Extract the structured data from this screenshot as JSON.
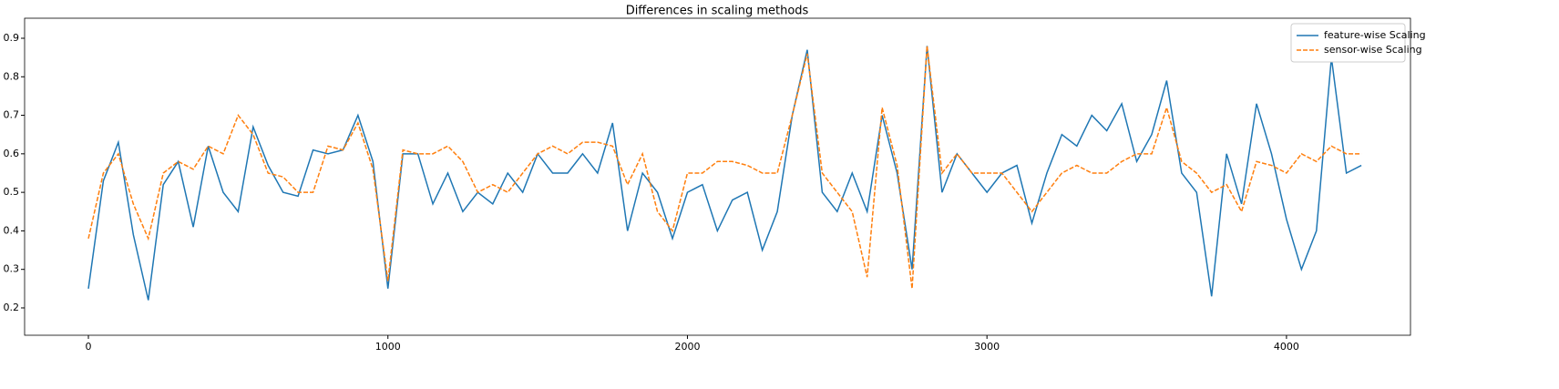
{
  "chart_data": {
    "type": "line",
    "title": "Differences in scaling methods",
    "x": [
      0,
      50,
      100,
      150,
      200,
      250,
      300,
      350,
      400,
      450,
      500,
      550,
      600,
      650,
      700,
      750,
      800,
      850,
      900,
      950,
      1000,
      1050,
      1100,
      1150,
      1200,
      1250,
      1300,
      1350,
      1400,
      1450,
      1500,
      1550,
      1600,
      1650,
      1700,
      1750,
      1800,
      1850,
      1900,
      1950,
      2000,
      2050,
      2100,
      2150,
      2200,
      2250,
      2300,
      2350,
      2400,
      2450,
      2500,
      2550,
      2600,
      2650,
      2700,
      2750,
      2800,
      2850,
      2900,
      2950,
      3000,
      3050,
      3100,
      3150,
      3200,
      3250,
      3300,
      3350,
      3400,
      3450,
      3500,
      3550,
      3600,
      3650,
      3700,
      3750,
      3800,
      3850,
      3900,
      3950,
      4000,
      4050,
      4100,
      4150,
      4200,
      4250
    ],
    "series": [
      {
        "name": "feature-wise Scaling",
        "color": "#1f77b4",
        "linestyle": "solid",
        "values": [
          0.25,
          0.53,
          0.63,
          0.39,
          0.22,
          0.52,
          0.58,
          0.41,
          0.62,
          0.5,
          0.45,
          0.67,
          0.57,
          0.5,
          0.49,
          0.61,
          0.6,
          0.61,
          0.7,
          0.58,
          0.25,
          0.6,
          0.6,
          0.47,
          0.55,
          0.45,
          0.5,
          0.47,
          0.55,
          0.5,
          0.6,
          0.55,
          0.55,
          0.6,
          0.55,
          0.68,
          0.4,
          0.55,
          0.5,
          0.38,
          0.5,
          0.52,
          0.4,
          0.48,
          0.5,
          0.35,
          0.45,
          0.7,
          0.87,
          0.5,
          0.45,
          0.55,
          0.45,
          0.7,
          0.55,
          0.3,
          0.88,
          0.5,
          0.6,
          0.55,
          0.5,
          0.55,
          0.57,
          0.42,
          0.55,
          0.65,
          0.62,
          0.7,
          0.66,
          0.73,
          0.58,
          0.65,
          0.79,
          0.55,
          0.5,
          0.23,
          0.6,
          0.47,
          0.73,
          0.6,
          0.43,
          0.3,
          0.4,
          0.85,
          0.55,
          0.57
        ]
      },
      {
        "name": "sensor-wise Scaling",
        "color": "#ff7f0e",
        "linestyle": "dashed",
        "values": [
          0.38,
          0.55,
          0.6,
          0.47,
          0.38,
          0.55,
          0.58,
          0.56,
          0.62,
          0.6,
          0.7,
          0.65,
          0.55,
          0.54,
          0.5,
          0.5,
          0.62,
          0.61,
          0.68,
          0.56,
          0.27,
          0.61,
          0.6,
          0.6,
          0.62,
          0.58,
          0.5,
          0.52,
          0.5,
          0.55,
          0.6,
          0.62,
          0.6,
          0.63,
          0.63,
          0.62,
          0.52,
          0.6,
          0.45,
          0.4,
          0.55,
          0.55,
          0.58,
          0.58,
          0.57,
          0.55,
          0.55,
          0.7,
          0.86,
          0.55,
          0.5,
          0.45,
          0.28,
          0.72,
          0.57,
          0.25,
          0.88,
          0.55,
          0.6,
          0.55,
          0.55,
          0.55,
          0.5,
          0.45,
          0.5,
          0.55,
          0.57,
          0.55,
          0.55,
          0.58,
          0.6,
          0.6,
          0.72,
          0.58,
          0.55,
          0.5,
          0.52,
          0.45,
          0.58,
          0.57,
          0.55,
          0.6,
          0.58,
          0.62,
          0.6,
          0.6
        ]
      }
    ],
    "xlim": [
      -213,
      4414
    ],
    "ylim": [
      0.129,
      0.952
    ],
    "xticks": [
      0,
      1000,
      2000,
      3000,
      4000
    ],
    "yticks": [
      0.2,
      0.3,
      0.4,
      0.5,
      0.6,
      0.7,
      0.8,
      0.9
    ],
    "legend": "upper right"
  }
}
